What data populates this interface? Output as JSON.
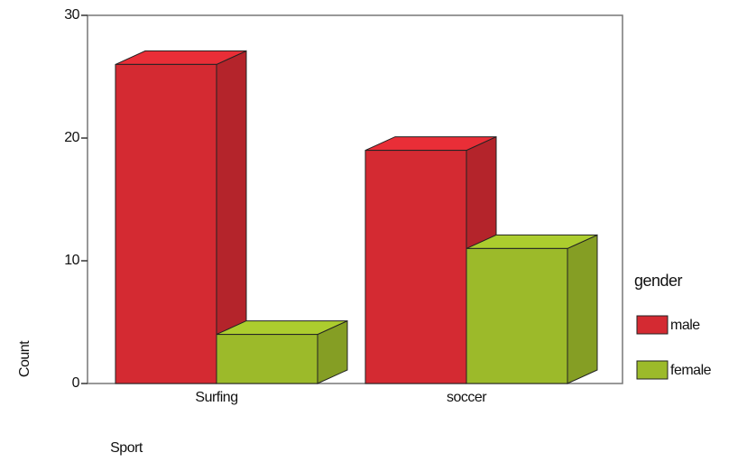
{
  "chart_data": {
    "type": "bar3d",
    "categories": [
      "Surfing",
      "soccer"
    ],
    "series": [
      {
        "name": "male",
        "color": "#d42a32",
        "values": [
          26,
          19
        ]
      },
      {
        "name": "female",
        "color": "#9cba2a",
        "values": [
          4,
          11
        ]
      }
    ],
    "ylim": [
      0,
      30
    ],
    "yticks": [
      0,
      10,
      20,
      30
    ],
    "y_label": "Count",
    "x_label": "Sport",
    "legend_title": "gender",
    "legend": "right"
  }
}
